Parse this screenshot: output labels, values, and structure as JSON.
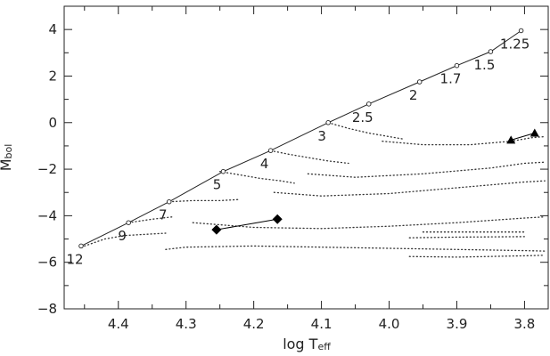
{
  "chart_data": {
    "type": "line",
    "xlabel": "log Teff",
    "ylabel": "Mbol",
    "x_range": [
      4.48,
      3.765
    ],
    "y_range": [
      5,
      -8
    ],
    "x_ticks": [
      {
        "value": 4.4,
        "label": "4.4"
      },
      {
        "value": 4.3,
        "label": "4.3"
      },
      {
        "value": 4.2,
        "label": "4.2"
      },
      {
        "value": 4.1,
        "label": "4.1"
      },
      {
        "value": 4.0,
        "label": "4.0"
      },
      {
        "value": 3.9,
        "label": "3.9"
      },
      {
        "value": 3.8,
        "label": "3.8"
      }
    ],
    "y_ticks": [
      {
        "value": -8,
        "label": "−8"
      },
      {
        "value": -6,
        "label": "−6"
      },
      {
        "value": -4,
        "label": "−4"
      },
      {
        "value": -2,
        "label": "−2"
      },
      {
        "value": 0,
        "label": "0"
      },
      {
        "value": 2,
        "label": "2"
      },
      {
        "value": 4,
        "label": "4"
      }
    ],
    "main_sequence": [
      {
        "x": 4.455,
        "y": -5.3,
        "label": "12"
      },
      {
        "x": 4.385,
        "y": -4.3,
        "label": "9"
      },
      {
        "x": 4.325,
        "y": -3.4,
        "label": "7"
      },
      {
        "x": 4.245,
        "y": -2.1,
        "label": "5"
      },
      {
        "x": 4.175,
        "y": -1.2,
        "label": "4"
      },
      {
        "x": 4.09,
        "y": 0.0,
        "label": "3"
      },
      {
        "x": 4.03,
        "y": 0.8,
        "label": "2.5"
      },
      {
        "x": 3.955,
        "y": 1.75,
        "label": "2"
      },
      {
        "x": 3.9,
        "y": 2.45,
        "label": "1.7"
      },
      {
        "x": 3.85,
        "y": 3.05,
        "label": "1.5"
      },
      {
        "x": 3.805,
        "y": 3.95,
        "label": "1.25"
      }
    ],
    "tracks": [
      [
        [
          4.45,
          -5.3
        ],
        [
          4.42,
          -5.0
        ],
        [
          4.39,
          -4.85
        ],
        [
          4.36,
          -4.8
        ],
        [
          4.33,
          -4.75
        ]
      ],
      [
        [
          4.33,
          -5.45
        ],
        [
          4.3,
          -5.35
        ],
        [
          4.2,
          -5.3
        ],
        [
          4.1,
          -5.35
        ],
        [
          4.0,
          -5.4
        ],
        [
          3.9,
          -5.45
        ],
        [
          3.8,
          -5.5
        ],
        [
          3.77,
          -5.52
        ]
      ],
      [
        [
          3.97,
          -5.75
        ],
        [
          3.9,
          -5.78
        ],
        [
          3.8,
          -5.72
        ],
        [
          3.77,
          -5.7
        ]
      ],
      [
        [
          3.97,
          -4.95
        ],
        [
          3.9,
          -4.92
        ],
        [
          3.8,
          -4.9
        ]
      ],
      [
        [
          3.95,
          -4.7
        ],
        [
          3.88,
          -4.7
        ],
        [
          3.8,
          -4.7
        ]
      ],
      [
        [
          4.385,
          -4.3
        ],
        [
          4.35,
          -4.15
        ],
        [
          4.32,
          -4.05
        ]
      ],
      [
        [
          4.29,
          -4.3
        ],
        [
          4.2,
          -4.5
        ],
        [
          4.1,
          -4.55
        ],
        [
          4.0,
          -4.45
        ],
        [
          3.9,
          -4.3
        ],
        [
          3.8,
          -4.1
        ],
        [
          3.77,
          -4.05
        ]
      ],
      [
        [
          4.325,
          -3.4
        ],
        [
          4.29,
          -3.35
        ],
        [
          4.25,
          -3.35
        ],
        [
          4.22,
          -3.3
        ]
      ],
      [
        [
          4.25,
          -2.1
        ],
        [
          4.22,
          -2.25
        ],
        [
          4.19,
          -2.4
        ],
        [
          4.16,
          -2.5
        ],
        [
          4.14,
          -2.6
        ]
      ],
      [
        [
          4.17,
          -3.0
        ],
        [
          4.1,
          -3.15
        ],
        [
          4.0,
          -3.05
        ],
        [
          3.9,
          -2.8
        ],
        [
          3.8,
          -2.55
        ],
        [
          3.77,
          -2.5
        ]
      ],
      [
        [
          4.175,
          -1.2
        ],
        [
          4.15,
          -1.35
        ],
        [
          4.12,
          -1.5
        ],
        [
          4.09,
          -1.65
        ],
        [
          4.06,
          -1.75
        ]
      ],
      [
        [
          4.12,
          -2.2
        ],
        [
          4.05,
          -2.35
        ],
        [
          3.95,
          -2.2
        ],
        [
          3.85,
          -1.95
        ],
        [
          3.8,
          -1.75
        ],
        [
          3.77,
          -1.7
        ]
      ],
      [
        [
          4.09,
          0.0
        ],
        [
          4.06,
          -0.25
        ],
        [
          4.03,
          -0.45
        ],
        [
          4.0,
          -0.6
        ],
        [
          3.98,
          -0.7
        ]
      ],
      [
        [
          4.01,
          -0.8
        ],
        [
          3.95,
          -0.95
        ],
        [
          3.88,
          -0.95
        ],
        [
          3.82,
          -0.8
        ],
        [
          3.79,
          -0.65
        ],
        [
          3.77,
          -0.6
        ]
      ]
    ],
    "segments": [
      {
        "marker": "diamond",
        "points": [
          [
            4.255,
            -4.6
          ],
          [
            4.165,
            -4.15
          ]
        ]
      },
      {
        "marker": "triangle",
        "points": [
          [
            3.82,
            -0.75
          ],
          [
            3.785,
            -0.45
          ]
        ]
      }
    ]
  }
}
